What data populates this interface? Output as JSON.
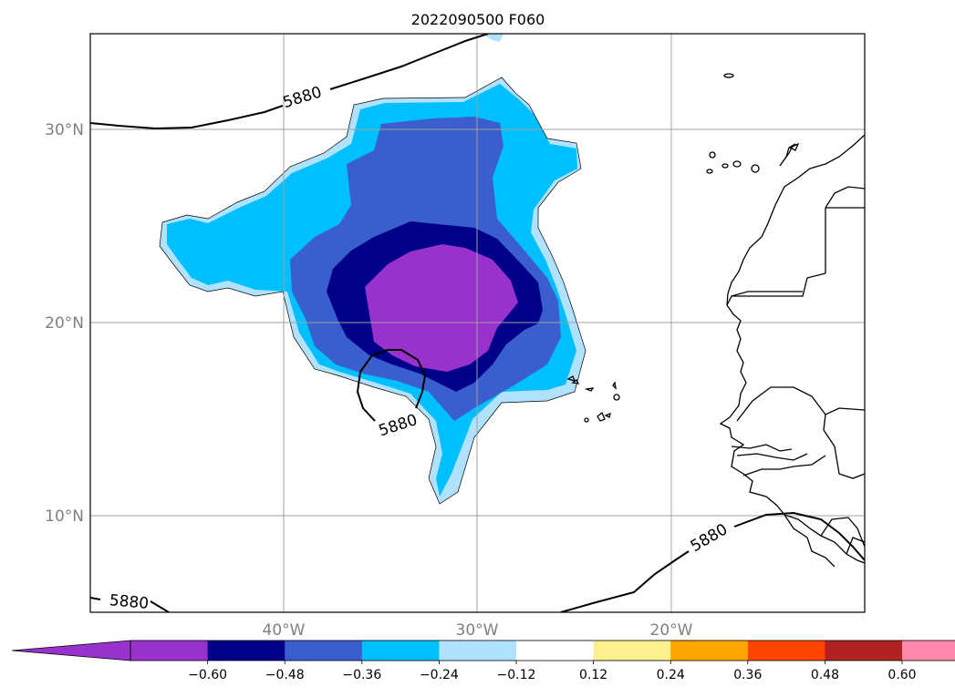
{
  "title": "2022090500 F060",
  "map": {
    "lat_labels": [
      "30°N",
      "20°N",
      "10°N"
    ],
    "lon_labels": [
      "40°W",
      "30°W",
      "20°W"
    ],
    "contour_label": "5880",
    "gridline_color": "#a0a0a0",
    "coastline_color": "#000000"
  },
  "colorbar": {
    "colors": [
      "#9932cc",
      "#00008b",
      "#3a5fcd",
      "#00bfff",
      "#b0e2ff",
      "#ffffff",
      "#fff08f",
      "#ffa500",
      "#ff4500",
      "#b22222",
      "#ff88aa"
    ],
    "under_color": "#9932cc",
    "over_color": "#ff88aa",
    "tick_labels": [
      "−0.60",
      "−0.48",
      "−0.36",
      "−0.24",
      "−0.12",
      "0.12",
      "0.24",
      "0.36",
      "0.48",
      "0.60"
    ]
  }
}
